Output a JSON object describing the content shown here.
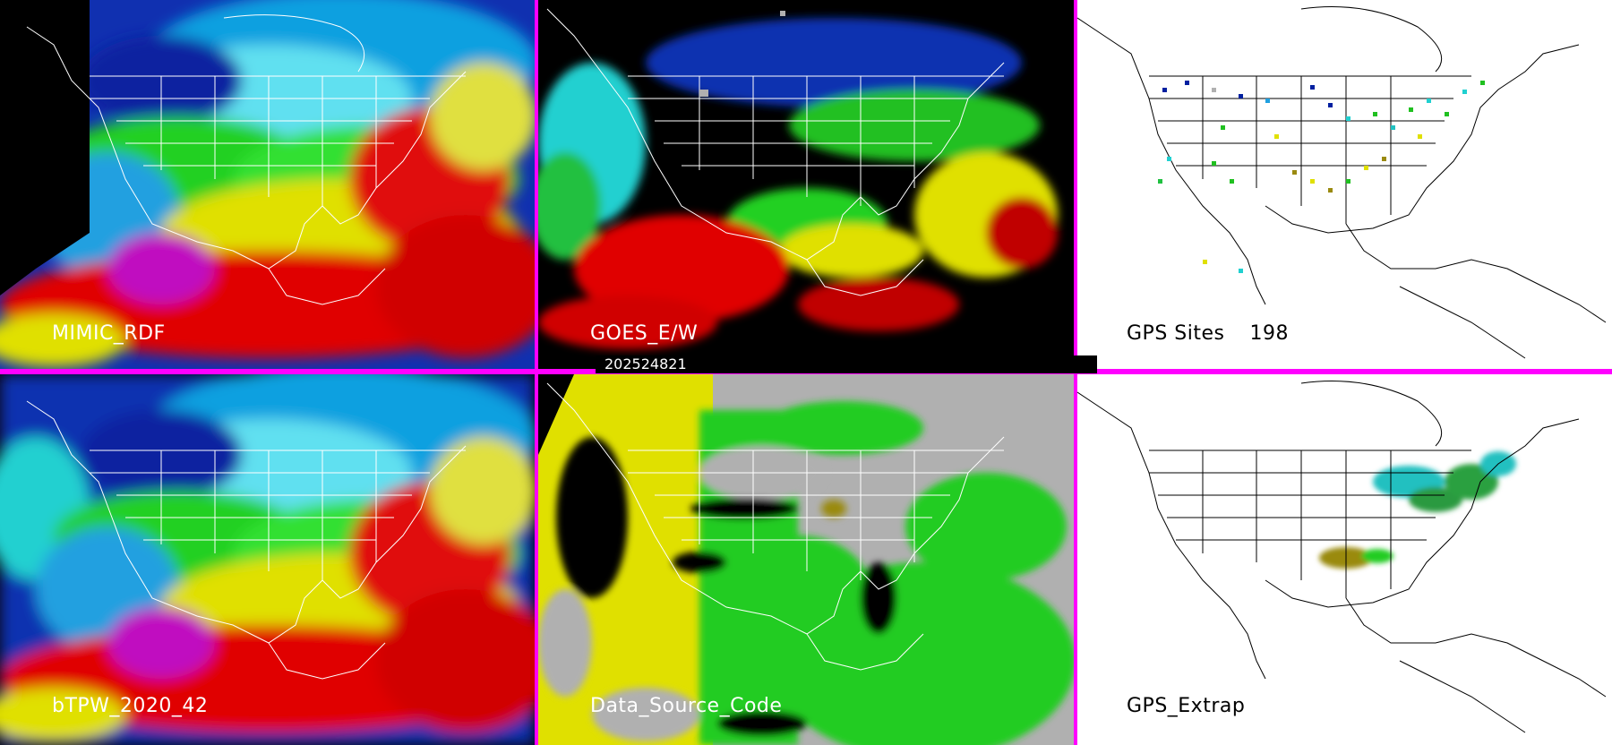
{
  "timestamp": "202524821",
  "panels": {
    "mimic": {
      "label": "MIMIC_RDF"
    },
    "goes": {
      "label": "GOES_E/W"
    },
    "gps_sites": {
      "label": "GPS Sites",
      "count": "198"
    },
    "btpw": {
      "label": "bTPW_2020_42"
    },
    "data_source": {
      "label": "Data_Source_Code"
    },
    "gps_extrap": {
      "label": "GPS_Extrap"
    }
  },
  "colors": {
    "divider": "#ff00ff",
    "moist_red": "#e00000",
    "yellow": "#e6e600",
    "green": "#22cc22",
    "cyan": "#20e0e0",
    "blue": "#0020a0",
    "gray": "#b0b0b0",
    "olive": "#9a8a10"
  },
  "icons": [
    "coastline-map-icon",
    "gps-site-marker-icon"
  ]
}
